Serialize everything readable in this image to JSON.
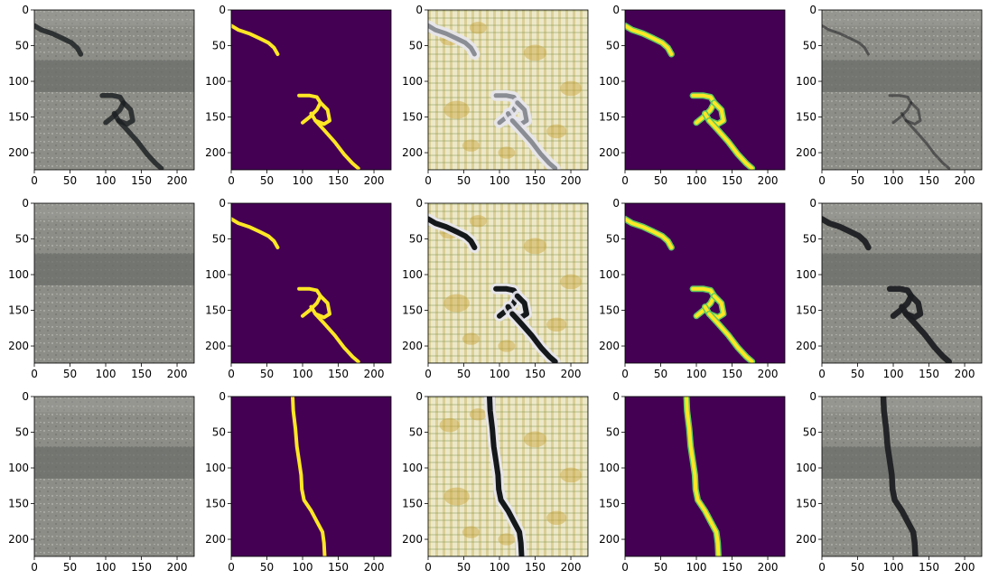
{
  "chart_data": {
    "type": "image-grid",
    "rows": 3,
    "cols": 5,
    "xlim": [
      0,
      224
    ],
    "ylim": [
      224,
      0
    ],
    "xticks": [
      0,
      50,
      100,
      150,
      200
    ],
    "yticks": [
      0,
      50,
      100,
      150,
      200
    ],
    "xtick_labels": [
      "0",
      "50",
      "100",
      "150",
      "200"
    ],
    "ytick_labels": [
      "0",
      "50",
      "100",
      "150",
      "200"
    ],
    "colors": {
      "mask_background": "#440154",
      "mask_foreground": "#fde725",
      "pred_edge": "#5ec962",
      "crack": "#1c1f22",
      "road_base": "#8c8d86",
      "road_band": "#6b6e6a",
      "heat_base": "#ece8c8"
    },
    "panels": [
      {
        "kind": "photo",
        "crack": "A",
        "fill": 0.8
      },
      {
        "kind": "mask",
        "crack": "A"
      },
      {
        "kind": "heatmap",
        "crack": "A",
        "tone": "light"
      },
      {
        "kind": "prediction",
        "crack": "A"
      },
      {
        "kind": "photo",
        "crack": "A",
        "fill": 0.3
      },
      {
        "kind": "photo",
        "crack": "none",
        "fill": 0
      },
      {
        "kind": "mask",
        "crack": "A"
      },
      {
        "kind": "heatmap",
        "crack": "A",
        "tone": "dark"
      },
      {
        "kind": "prediction",
        "crack": "A"
      },
      {
        "kind": "photo",
        "crack": "A",
        "fill": 1.0
      },
      {
        "kind": "photo",
        "crack": "none",
        "fill": 0
      },
      {
        "kind": "mask",
        "crack": "B"
      },
      {
        "kind": "heatmap",
        "crack": "B",
        "tone": "dark"
      },
      {
        "kind": "prediction",
        "crack": "B"
      },
      {
        "kind": "photo",
        "crack": "B",
        "fill": 1.0
      }
    ],
    "cracks": {
      "A": [
        [
          [
            0,
            22
          ],
          [
            10,
            28
          ],
          [
            25,
            33
          ],
          [
            40,
            40
          ],
          [
            52,
            46
          ],
          [
            60,
            53
          ],
          [
            65,
            62
          ]
        ],
        [
          [
            95,
            120
          ],
          [
            110,
            120
          ],
          [
            120,
            122
          ],
          [
            125,
            130
          ],
          [
            120,
            140
          ],
          [
            110,
            150
          ],
          [
            100,
            158
          ]
        ],
        [
          [
            125,
            130
          ],
          [
            135,
            140
          ],
          [
            138,
            155
          ],
          [
            130,
            160
          ],
          [
            118,
            155
          ],
          [
            112,
            145
          ]
        ],
        [
          [
            118,
            155
          ],
          [
            130,
            168
          ],
          [
            145,
            185
          ],
          [
            158,
            202
          ],
          [
            170,
            215
          ],
          [
            178,
            222
          ]
        ]
      ],
      "B": [
        [
          [
            86,
            0
          ],
          [
            87,
            20
          ],
          [
            90,
            45
          ],
          [
            92,
            70
          ],
          [
            95,
            90
          ],
          [
            98,
            110
          ],
          [
            99,
            130
          ],
          [
            102,
            145
          ],
          [
            112,
            160
          ],
          [
            120,
            175
          ],
          [
            128,
            190
          ],
          [
            130,
            205
          ],
          [
            131,
            224
          ]
        ]
      ]
    }
  }
}
